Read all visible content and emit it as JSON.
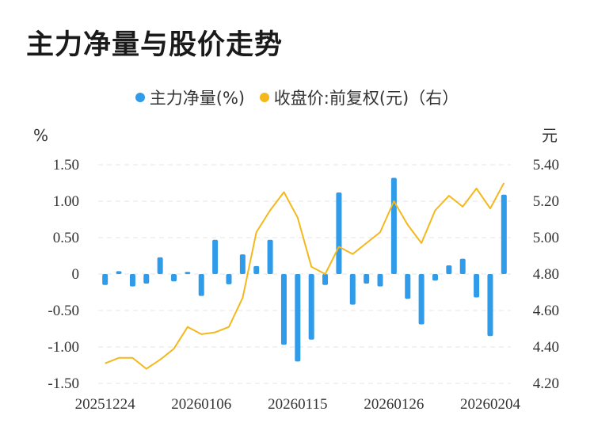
{
  "title": "主力净量与股价走势",
  "chart_data": {
    "type": "bar+line",
    "legend": [
      "主力净量(%)",
      "收盘价:前复权(元)（右）"
    ],
    "colors": {
      "bar": "#2f9be9",
      "line": "#f5b81c"
    },
    "left_unit": "%",
    "right_unit": "元",
    "left_ticks": [
      "1.50",
      "1.00",
      "0.50",
      "0",
      "-0.50",
      "-1.00",
      "-1.50"
    ],
    "right_ticks": [
      "5.40",
      "5.20",
      "5.00",
      "4.80",
      "4.60",
      "4.40",
      "4.20"
    ],
    "left_range": [
      -1.5,
      1.5
    ],
    "right_range": [
      4.2,
      5.4
    ],
    "x_labels": [
      "20251224",
      "20260106",
      "20260115",
      "20260126",
      "20260204"
    ],
    "series": [
      {
        "name": "主力净量(%)",
        "values": [
          -0.15,
          0.04,
          -0.17,
          -0.13,
          0.23,
          -0.1,
          0.03,
          -0.3,
          0.47,
          -0.14,
          0.27,
          0.11,
          0.47,
          -0.97,
          -1.2,
          -0.9,
          -0.15,
          1.12,
          -0.42,
          -0.13,
          -0.17,
          1.32,
          -0.34,
          -0.69,
          -0.09,
          0.12,
          0.21,
          -0.32,
          -0.85,
          1.09
        ]
      },
      {
        "name": "收盘价:前复权(元)（右）",
        "values": [
          4.31,
          4.34,
          4.34,
          4.28,
          4.33,
          4.39,
          4.51,
          4.47,
          4.48,
          4.51,
          4.67,
          5.03,
          5.15,
          5.25,
          5.11,
          4.84,
          4.8,
          4.95,
          4.91,
          4.97,
          5.03,
          5.2,
          5.07,
          4.97,
          5.15,
          5.23,
          5.17,
          5.27,
          5.16,
          5.3
        ]
      }
    ]
  }
}
